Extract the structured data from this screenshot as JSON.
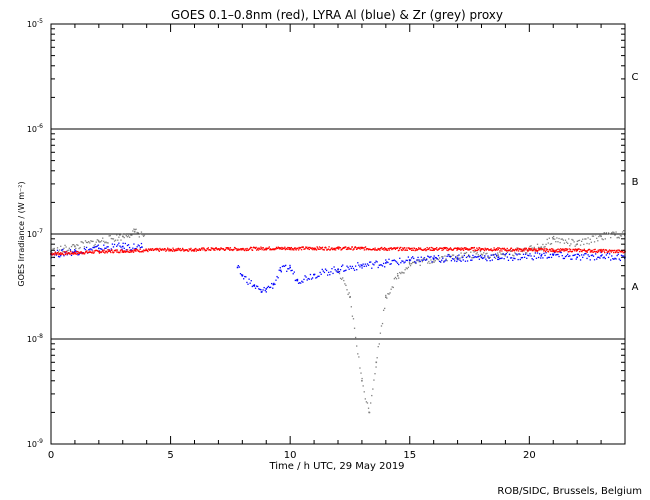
{
  "chart_data": {
    "type": "scatter",
    "title": "GOES 0.1–0.8nm (red), LYRA Al (blue) & Zr (grey) proxy",
    "xlabel": "Time / h UTC, 29 May 2019",
    "ylabel": "GOES Irradiance / (W m⁻²)",
    "credit": "ROB/SIDC, Brussels, Belgium",
    "x_ticks": [
      "0",
      "5",
      "10",
      "15",
      "20"
    ],
    "x_tick_values": [
      0,
      5,
      10,
      15,
      20
    ],
    "xlim": [
      0,
      24
    ],
    "y_scale": "log",
    "ylim": [
      1e-09,
      1e-05
    ],
    "y_ticks": [
      {
        "value": 1e-05,
        "base": "10",
        "exp": "-5"
      },
      {
        "value": 1e-06,
        "base": "10",
        "exp": "-6"
      },
      {
        "value": 1e-07,
        "base": "10",
        "exp": "-7"
      },
      {
        "value": 1e-08,
        "base": "10",
        "exp": "-8"
      },
      {
        "value": 1e-09,
        "base": "10",
        "exp": "-9"
      }
    ],
    "flare_class_lines": [
      1e-06,
      1e-07,
      1e-08
    ],
    "flare_classes": [
      {
        "label": "C",
        "value": 3.2e-06
      },
      {
        "label": "B",
        "value": 3.2e-07
      },
      {
        "label": "A",
        "value": 3.2e-08
      }
    ],
    "series": [
      {
        "color": "#ff0000",
        "points": [
          [
            0,
            6.5e-08
          ],
          [
            1,
            6.6e-08
          ],
          [
            2,
            6.8e-08
          ],
          [
            3,
            6.9e-08
          ],
          [
            4,
            7e-08
          ],
          [
            5,
            7.1e-08
          ],
          [
            6,
            7.1e-08
          ],
          [
            7,
            7.2e-08
          ],
          [
            8,
            7.2e-08
          ],
          [
            9,
            7.3e-08
          ],
          [
            10,
            7.3e-08
          ],
          [
            11,
            7.3e-08
          ],
          [
            12,
            7.3e-08
          ],
          [
            13,
            7.3e-08
          ],
          [
            14,
            7.2e-08
          ],
          [
            15,
            7.2e-08
          ],
          [
            16,
            7.2e-08
          ],
          [
            17,
            7.2e-08
          ],
          [
            18,
            7.2e-08
          ],
          [
            19,
            7.1e-08
          ],
          [
            20,
            7.1e-08
          ],
          [
            21,
            7e-08
          ],
          [
            22,
            7e-08
          ],
          [
            23,
            6.9e-08
          ],
          [
            24,
            6.8e-08
          ]
        ]
      },
      {
        "color": "#0000ff",
        "points": [
          [
            0,
            6.4e-08
          ],
          [
            1,
            6.8e-08
          ],
          [
            2,
            7.3e-08
          ],
          [
            3,
            7.6e-08
          ],
          [
            3.8,
            7.5e-08
          ],
          [
            7.8,
            4.8e-08
          ],
          [
            8,
            4e-08
          ],
          [
            8.5,
            3.2e-08
          ],
          [
            8.8,
            2.8e-08
          ],
          [
            9,
            3e-08
          ],
          [
            9.3,
            3.3e-08
          ],
          [
            9.6,
            4.5e-08
          ],
          [
            10,
            4.8e-08
          ],
          [
            10.3,
            3.6e-08
          ],
          [
            11,
            4.1e-08
          ],
          [
            12,
            4.6e-08
          ],
          [
            13,
            5e-08
          ],
          [
            14,
            5.3e-08
          ],
          [
            15,
            5.6e-08
          ],
          [
            16,
            5.8e-08
          ],
          [
            17,
            5.9e-08
          ],
          [
            18,
            6e-08
          ],
          [
            18.7,
            6e-08
          ],
          [
            20.5,
            6.2e-08
          ],
          [
            21,
            6.3e-08
          ],
          [
            22,
            6e-08
          ],
          [
            23,
            6.2e-08
          ],
          [
            24,
            6e-08
          ]
        ]
      },
      {
        "color": "#808080",
        "points": [
          [
            0,
            6.8e-08
          ],
          [
            1,
            7.6e-08
          ],
          [
            2,
            8.5e-08
          ],
          [
            3,
            9.5e-08
          ],
          [
            3.5,
            1.05e-07
          ],
          [
            3.9,
            9.8e-08
          ],
          [
            12,
            4.4e-08
          ],
          [
            12.5,
            2.5e-08
          ],
          [
            13,
            4e-09
          ],
          [
            13.3,
            2e-09
          ],
          [
            13.6,
            6e-09
          ],
          [
            14,
            2.5e-08
          ],
          [
            14.5,
            4e-08
          ],
          [
            15,
            5.2e-08
          ],
          [
            16,
            5.7e-08
          ],
          [
            17,
            6.2e-08
          ],
          [
            18,
            6.4e-08
          ],
          [
            18.7,
            6.3e-08
          ],
          [
            20.5,
            7.5e-08
          ],
          [
            21,
            9e-08
          ],
          [
            22,
            8e-08
          ],
          [
            23,
            9.5e-08
          ],
          [
            24,
            1e-07
          ]
        ]
      }
    ]
  }
}
